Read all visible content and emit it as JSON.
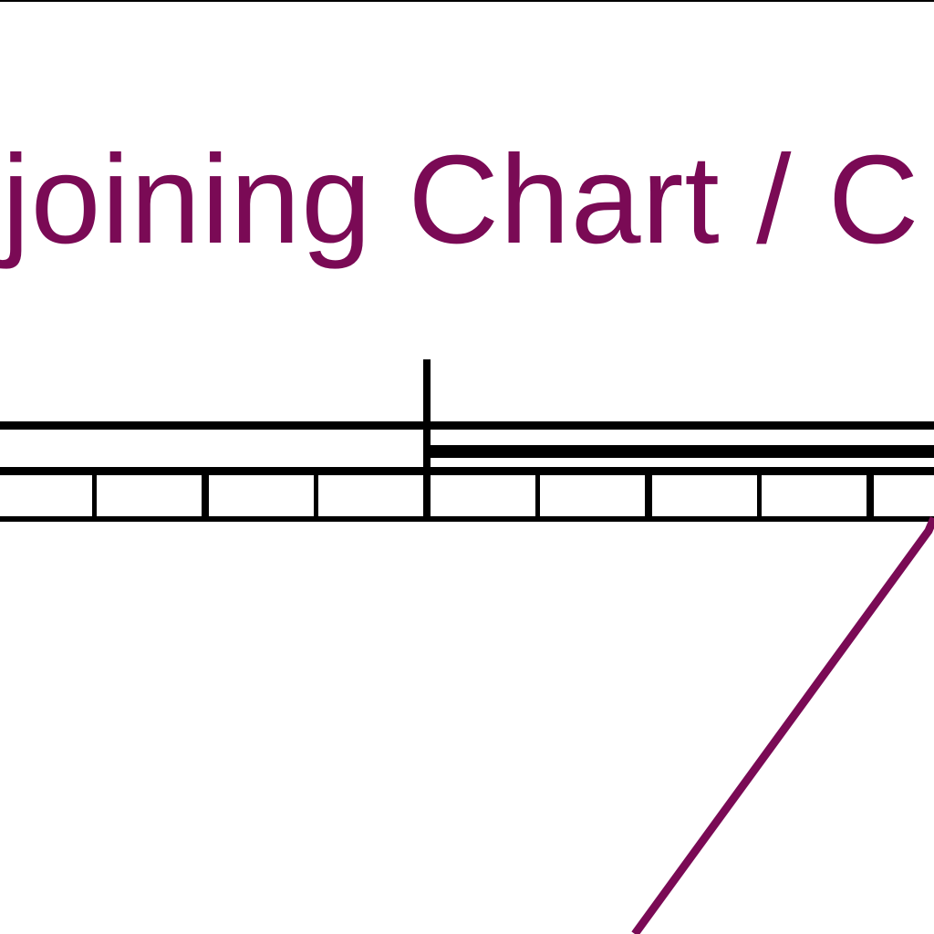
{
  "sheet": {
    "heading_text": "joining Chart / C",
    "accent_color": "#7a0a55",
    "line_color": "#000000",
    "background_color": "#ffffff"
  },
  "scale_bar": {
    "left_section_divisions": 4,
    "right_section_divisions": 5,
    "major_tick_every": 2
  }
}
